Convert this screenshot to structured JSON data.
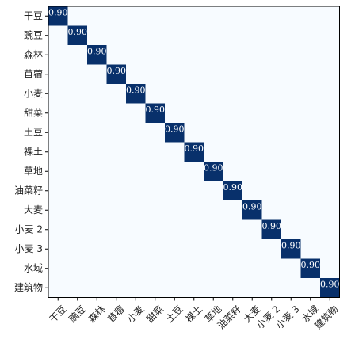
{
  "chart_data": {
    "type": "heatmap",
    "title": "",
    "xlabel": "",
    "ylabel": "",
    "row_labels": [
      "干豆",
      "豌豆",
      "森林",
      "苜蓿",
      "小麦",
      "甜菜",
      "土豆",
      "裸土",
      "草地",
      "油菜籽",
      "大麦",
      "小麦 2",
      "小麦 3",
      "水域",
      "建筑物"
    ],
    "col_labels": [
      "干豆",
      "豌豆",
      "森林",
      "苜蓿",
      "小麦",
      "甜菜",
      "土豆",
      "裸土",
      "草地",
      "油菜籽",
      "大麦",
      "小麦 2",
      "小麦 3",
      "水域",
      "建筑物"
    ],
    "diagonal_value": 0.9,
    "diagonal_label": "0.90",
    "off_diagonal_value": 0.0,
    "value_range": [
      0,
      0.9
    ],
    "colormap": "Blues",
    "colors": {
      "low": "#f7fbff",
      "high": "#08306b",
      "label_on_dark": "#ffffff"
    }
  }
}
